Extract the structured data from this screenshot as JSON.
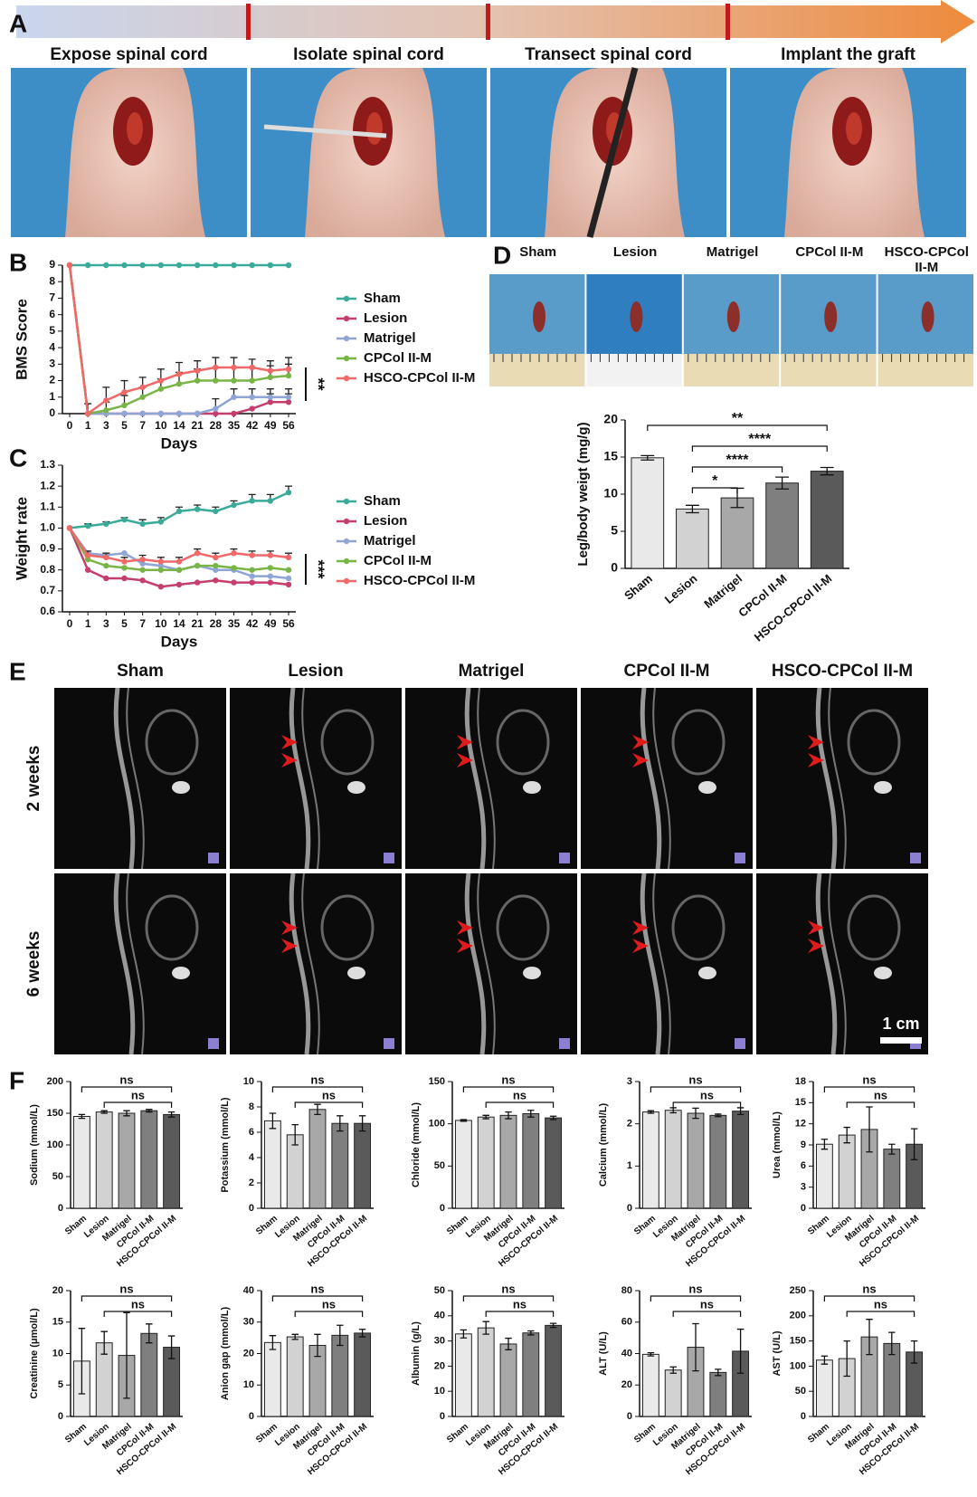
{
  "panel_labels": [
    "A",
    "B",
    "C",
    "D",
    "E",
    "F"
  ],
  "procedure_steps": [
    "Expose spinal cord",
    "Isolate spinal cord",
    "Transect spinal cord",
    "Implant the graft"
  ],
  "gross_groups": [
    "Sham",
    "Lesion",
    "Matrigel",
    "CPCol II-M",
    "HSCO-CPCol II-M"
  ],
  "mri": {
    "columns": [
      "Sham",
      "Lesion",
      "Matrigel",
      "CPCol II-M",
      "HSCO-CPCol II-M"
    ],
    "rows": [
      "2 weeks",
      "6 weeks"
    ],
    "scale_bar": "1 cm"
  },
  "chart_data": [
    {
      "type": "line",
      "ylabel": "BMS Score",
      "xlabel": "Days",
      "categories": [
        "0",
        "1",
        "3",
        "5",
        "7",
        "10",
        "14",
        "21",
        "28",
        "35",
        "42",
        "49",
        "56"
      ],
      "ylim": [
        0,
        9
      ],
      "yticks": [
        0,
        1,
        2,
        3,
        4,
        5,
        6,
        7,
        8,
        9
      ],
      "significance": "**",
      "series": [
        {
          "name": "Sham",
          "color": "#3aab98",
          "values": [
            9,
            9,
            9,
            9,
            9,
            9,
            9,
            9,
            9,
            9,
            9,
            9,
            9
          ]
        },
        {
          "name": "Lesion",
          "color": "#c43f6c",
          "values": [
            9,
            0,
            0,
            0,
            0,
            0,
            0,
            0,
            0,
            0,
            0.3,
            0.7,
            0.7
          ],
          "errors": [
            null,
            null,
            null,
            null,
            null,
            null,
            null,
            null,
            null,
            null,
            null,
            0.5,
            0.5
          ]
        },
        {
          "name": "Matrigel",
          "color": "#8fa5d6",
          "values": [
            9,
            0,
            0,
            0,
            0,
            0,
            0,
            0,
            0.3,
            1,
            1,
            1,
            1
          ],
          "errors": [
            null,
            null,
            null,
            null,
            null,
            null,
            null,
            null,
            0.6,
            0.5,
            0.5,
            0.5,
            0.5
          ]
        },
        {
          "name": "CPCol II-M",
          "color": "#79b546",
          "values": [
            9,
            0,
            0.2,
            0.5,
            1,
            1.5,
            1.8,
            2,
            2,
            2,
            2,
            2.2,
            2.3
          ],
          "errors": [
            null,
            null,
            0.5,
            0.6,
            0.6,
            0.6,
            0.7,
            0.7,
            0.8,
            0.8,
            0.8,
            0.7,
            0.7
          ]
        },
        {
          "name": "HSCO-CPCol II-M",
          "color": "#f06868",
          "values": [
            9,
            0,
            0.8,
            1.3,
            1.6,
            2,
            2.4,
            2.6,
            2.8,
            2.8,
            2.8,
            2.6,
            2.7
          ],
          "errors": [
            null,
            0.6,
            0.8,
            0.7,
            0.6,
            0.7,
            0.7,
            0.6,
            0.6,
            0.6,
            0.5,
            0.6,
            0.7
          ]
        }
      ]
    },
    {
      "type": "line",
      "ylabel": "Weight rate",
      "xlabel": "Days",
      "categories": [
        "0",
        "1",
        "3",
        "5",
        "7",
        "10",
        "14",
        "21",
        "28",
        "35",
        "42",
        "49",
        "56"
      ],
      "ylim": [
        0.6,
        1.3
      ],
      "yticks": [
        0.6,
        0.7,
        0.8,
        0.9,
        {
          "value": 1,
          "label": "1.0"
        },
        1.1,
        1.2,
        1.3
      ],
      "significance": "***",
      "series": [
        {
          "name": "Sham",
          "color": "#3aab98",
          "values": [
            1,
            1.01,
            1.02,
            1.04,
            1.02,
            1.03,
            1.08,
            1.09,
            1.08,
            1.11,
            1.13,
            1.13,
            1.17
          ],
          "errors": [
            null,
            0.01,
            0.01,
            0.01,
            0.02,
            0.02,
            0.02,
            0.02,
            0.02,
            0.02,
            0.03,
            0.03,
            0.03
          ]
        },
        {
          "name": "Lesion",
          "color": "#c43f6c",
          "values": [
            1,
            0.8,
            0.76,
            0.76,
            0.75,
            0.72,
            0.73,
            0.74,
            0.75,
            0.74,
            0.74,
            0.74,
            0.73
          ]
        },
        {
          "name": "Matrigel",
          "color": "#8fa5d6",
          "values": [
            1,
            0.88,
            0.87,
            0.88,
            0.83,
            0.82,
            0.8,
            0.82,
            0.8,
            0.8,
            0.77,
            0.77,
            0.76
          ]
        },
        {
          "name": "CPCol II-M",
          "color": "#79b546",
          "values": [
            1,
            0.85,
            0.82,
            0.81,
            0.8,
            0.8,
            0.8,
            0.82,
            0.82,
            0.81,
            0.8,
            0.81,
            0.8
          ]
        },
        {
          "name": "HSCO-CPCol II-M",
          "color": "#f06868",
          "values": [
            1,
            0.87,
            0.86,
            0.84,
            0.85,
            0.84,
            0.84,
            0.88,
            0.86,
            0.88,
            0.87,
            0.87,
            0.86
          ],
          "errors": [
            null,
            0.02,
            0.02,
            0.02,
            0.02,
            0.02,
            0.02,
            0.02,
            0.02,
            0.02,
            0.02,
            0.02,
            0.02
          ]
        }
      ]
    },
    {
      "type": "bar",
      "ylabel": "Leg/body weigt (mg/g)",
      "categories": [
        "Sham",
        "Lesion",
        "Matrigel",
        "CPCol II-M",
        "HSCO-CPCol II-M"
      ],
      "values": [
        14.9,
        8,
        9.5,
        11.5,
        13.1
      ],
      "errors": [
        0.3,
        0.5,
        1.3,
        0.8,
        0.5
      ],
      "colors": [
        "#e9e9e9",
        "#d2d2d2",
        "#a8a8a8",
        "#7f7f7f",
        "#5a5a5a"
      ],
      "ylim": [
        0,
        20
      ],
      "yticks": [
        0,
        5,
        10,
        15,
        20
      ],
      "significance": [
        {
          "from": "Sham",
          "to": "HSCO-CPCol II-M",
          "label": "**"
        },
        {
          "from": "Lesion",
          "to": "HSCO-CPCol II-M",
          "label": "****"
        },
        {
          "from": "Lesion",
          "to": "CPCol II-M",
          "label": "****"
        },
        {
          "from": "Lesion",
          "to": "Matrigel",
          "label": "*"
        }
      ]
    },
    {
      "type": "bar",
      "ylabel": "Sodium (mmol/L)",
      "categories": [
        "Sham",
        "Lesion",
        "Matrigel",
        "CPCol II-M",
        "HSCO-CPCol II-M"
      ],
      "values": [
        145,
        152,
        150,
        154,
        148
      ],
      "errors": [
        3,
        2,
        4,
        2,
        4
      ],
      "colors": [
        "#e9e9e9",
        "#d2d2d2",
        "#a8a8a8",
        "#7f7f7f",
        "#5a5a5a"
      ],
      "ylim": [
        0,
        200
      ],
      "yticks": [
        0,
        50,
        100,
        150,
        200
      ],
      "significance": [
        {
          "from": "Sham",
          "to": "HSCO-CPCol II-M",
          "label": "ns"
        },
        {
          "from": "Lesion",
          "to": "HSCO-CPCol II-M",
          "label": "ns"
        }
      ]
    },
    {
      "type": "bar",
      "ylabel": "Potassium (mmol/L)",
      "categories": [
        "Sham",
        "Lesion",
        "Matrigel",
        "CPCol II-M",
        "HSCO-CPCol II-M"
      ],
      "values": [
        6.9,
        5.8,
        7.8,
        6.7,
        6.7
      ],
      "errors": [
        0.6,
        0.8,
        0.4,
        0.6,
        0.6
      ],
      "colors": [
        "#e9e9e9",
        "#d2d2d2",
        "#a8a8a8",
        "#7f7f7f",
        "#5a5a5a"
      ],
      "ylim": [
        0,
        10
      ],
      "yticks": [
        0,
        2,
        4,
        6,
        8,
        10
      ],
      "significance": [
        {
          "from": "Sham",
          "to": "HSCO-CPCol II-M",
          "label": "ns"
        },
        {
          "from": "Lesion",
          "to": "HSCO-CPCol II-M",
          "label": "ns"
        }
      ]
    },
    {
      "type": "bar",
      "ylabel": "Chloride (mmol/L)",
      "categories": [
        "Sham",
        "Lesion",
        "Matrigel",
        "CPCol II-M",
        "HSCO-CPCol II-M"
      ],
      "values": [
        104,
        108,
        110,
        112,
        107
      ],
      "errors": [
        1,
        2,
        4,
        4,
        2
      ],
      "colors": [
        "#e9e9e9",
        "#d2d2d2",
        "#a8a8a8",
        "#7f7f7f",
        "#5a5a5a"
      ],
      "ylim": [
        0,
        150
      ],
      "yticks": [
        0,
        50,
        100,
        150
      ],
      "significance": [
        {
          "from": "Sham",
          "to": "HSCO-CPCol II-M",
          "label": "ns"
        },
        {
          "from": "Lesion",
          "to": "HSCO-CPCol II-M",
          "label": "ns"
        }
      ]
    },
    {
      "type": "bar",
      "ylabel": "Calcium (mmol/L)",
      "categories": [
        "Sham",
        "Lesion",
        "Matrigel",
        "CPCol II-M",
        "HSCO-CPCol II-M"
      ],
      "values": [
        2.28,
        2.32,
        2.25,
        2.2,
        2.3
      ],
      "errors": [
        0.03,
        0.06,
        0.12,
        0.03,
        0.08
      ],
      "colors": [
        "#e9e9e9",
        "#d2d2d2",
        "#a8a8a8",
        "#7f7f7f",
        "#5a5a5a"
      ],
      "ylim": [
        0,
        3
      ],
      "yticks": [
        0,
        1,
        2,
        3
      ],
      "significance": [
        {
          "from": "Sham",
          "to": "HSCO-CPCol II-M",
          "label": "ns"
        },
        {
          "from": "Lesion",
          "to": "HSCO-CPCol II-M",
          "label": "ns"
        }
      ]
    },
    {
      "type": "bar",
      "ylabel": "Urea (mmol/L)",
      "categories": [
        "Sham",
        "Lesion",
        "Matrigel",
        "CPCol II-M",
        "HSCO-CPCol II-M"
      ],
      "values": [
        9.1,
        10.4,
        11.2,
        8.4,
        9.1
      ],
      "errors": [
        0.7,
        1.1,
        3.2,
        0.7,
        2.2
      ],
      "colors": [
        "#e9e9e9",
        "#d2d2d2",
        "#a8a8a8",
        "#7f7f7f",
        "#5a5a5a"
      ],
      "ylim": [
        0,
        18
      ],
      "yticks": [
        0,
        3,
        6,
        9,
        12,
        15,
        18
      ],
      "significance": [
        {
          "from": "Sham",
          "to": "HSCO-CPCol II-M",
          "label": "ns"
        },
        {
          "from": "Lesion",
          "to": "HSCO-CPCol II-M",
          "label": "ns"
        }
      ]
    },
    {
      "type": "bar",
      "ylabel": "Creatinine (μmol/L)",
      "categories": [
        "Sham",
        "Lesion",
        "Matrigel",
        "CPCol II-M",
        "HSCO-CPCol II-M"
      ],
      "values": [
        8.8,
        11.7,
        9.7,
        13.2,
        11
      ],
      "errors": [
        5.2,
        1.8,
        6.8,
        1.5,
        1.8
      ],
      "colors": [
        "#e9e9e9",
        "#d2d2d2",
        "#a8a8a8",
        "#7f7f7f",
        "#5a5a5a"
      ],
      "ylim": [
        0,
        20
      ],
      "yticks": [
        0,
        5,
        10,
        15,
        20
      ],
      "significance": [
        {
          "from": "Sham",
          "to": "HSCO-CPCol II-M",
          "label": "ns"
        },
        {
          "from": "Lesion",
          "to": "HSCO-CPCol II-M",
          "label": "ns"
        }
      ]
    },
    {
      "type": "bar",
      "ylabel": "Anion gap (mmol/L)",
      "categories": [
        "Sham",
        "Lesion",
        "Matrigel",
        "CPCol II-M",
        "HSCO-CPCol II-M"
      ],
      "values": [
        23.5,
        25.3,
        22.6,
        25.8,
        26.5
      ],
      "errors": [
        2.2,
        0.8,
        3.5,
        3.2,
        1.2
      ],
      "colors": [
        "#e9e9e9",
        "#d2d2d2",
        "#a8a8a8",
        "#7f7f7f",
        "#5a5a5a"
      ],
      "ylim": [
        0,
        40
      ],
      "yticks": [
        0,
        10,
        20,
        30,
        40
      ],
      "significance": [
        {
          "from": "Sham",
          "to": "HSCO-CPCol II-M",
          "label": "ns"
        },
        {
          "from": "Lesion",
          "to": "HSCO-CPCol II-M",
          "label": "ns"
        }
      ]
    },
    {
      "type": "bar",
      "ylabel": "Albumin (g/L)",
      "categories": [
        "Sham",
        "Lesion",
        "Matrigel",
        "CPCol II-M",
        "HSCO-CPCol II-M"
      ],
      "values": [
        32.8,
        35.2,
        28.8,
        33.2,
        36.2
      ],
      "errors": [
        1.6,
        2.5,
        2.3,
        0.8,
        0.8
      ],
      "colors": [
        "#e9e9e9",
        "#d2d2d2",
        "#a8a8a8",
        "#7f7f7f",
        "#5a5a5a"
      ],
      "ylim": [
        0,
        50
      ],
      "yticks": [
        0,
        10,
        20,
        30,
        40,
        50
      ],
      "significance": [
        {
          "from": "Sham",
          "to": "HSCO-CPCol II-M",
          "label": "ns"
        },
        {
          "from": "Lesion",
          "to": "HSCO-CPCol II-M",
          "label": "ns"
        }
      ]
    },
    {
      "type": "bar",
      "ylabel": "ALT (U/L)",
      "categories": [
        "Sham",
        "Lesion",
        "Matrigel",
        "CPCol II-M",
        "HSCO-CPCol II-M"
      ],
      "values": [
        39.5,
        29.5,
        44,
        28,
        41.5
      ],
      "errors": [
        1,
        2,
        15,
        2,
        14
      ],
      "colors": [
        "#e9e9e9",
        "#d2d2d2",
        "#a8a8a8",
        "#7f7f7f",
        "#5a5a5a"
      ],
      "ylim": [
        0,
        80
      ],
      "yticks": [
        0,
        20,
        40,
        60,
        80
      ],
      "significance": [
        {
          "from": "Sham",
          "to": "HSCO-CPCol II-M",
          "label": "ns"
        },
        {
          "from": "Lesion",
          "to": "HSCO-CPCol II-M",
          "label": "ns"
        }
      ]
    },
    {
      "type": "bar",
      "ylabel": "AST (U/L)",
      "categories": [
        "Sham",
        "Lesion",
        "Matrigel",
        "CPCol II-M",
        "HSCO-CPCol II-M"
      ],
      "values": [
        112,
        115,
        158,
        145,
        128
      ],
      "errors": [
        8,
        35,
        35,
        22,
        22
      ],
      "colors": [
        "#e9e9e9",
        "#d2d2d2",
        "#a8a8a8",
        "#7f7f7f",
        "#5a5a5a"
      ],
      "ylim": [
        0,
        250
      ],
      "yticks": [
        0,
        50,
        100,
        150,
        200,
        250
      ],
      "significance": [
        {
          "from": "Sham",
          "to": "HSCO-CPCol II-M",
          "label": "ns"
        },
        {
          "from": "Lesion",
          "to": "HSCO-CPCol II-M",
          "label": "ns"
        }
      ]
    }
  ]
}
